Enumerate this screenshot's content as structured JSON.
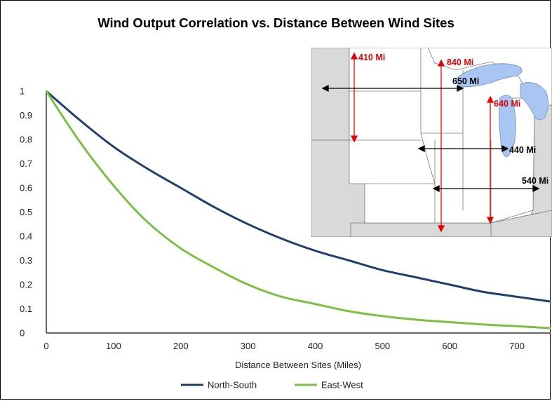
{
  "chart_data": {
    "type": "line",
    "title": "Wind Output Correlation vs. Distance Between Wind Sites",
    "xlabel": "Distance Between Sites (Miles)",
    "ylabel": "",
    "xlim": [
      0,
      750
    ],
    "ylim": [
      0,
      1
    ],
    "x_ticks": [
      "0",
      "100",
      "200",
      "300",
      "400",
      "500",
      "600",
      "700"
    ],
    "y_ticks": [
      "0",
      "0.1",
      "0.2",
      "0.3",
      "0.4",
      "0.5",
      "0.6",
      "0.7",
      "0.8",
      "0.9",
      "1"
    ],
    "grid": false,
    "legend_position": "bottom",
    "series": [
      {
        "name": "North-South",
        "color": "#1f3f6e",
        "x": [
          0,
          50,
          100,
          150,
          200,
          250,
          300,
          350,
          400,
          450,
          500,
          550,
          600,
          650,
          700,
          750
        ],
        "values": [
          1.0,
          0.88,
          0.77,
          0.68,
          0.6,
          0.52,
          0.45,
          0.39,
          0.34,
          0.3,
          0.26,
          0.23,
          0.2,
          0.17,
          0.15,
          0.13
        ]
      },
      {
        "name": "East-West",
        "color": "#7ac143",
        "x": [
          0,
          50,
          100,
          150,
          200,
          250,
          300,
          350,
          400,
          450,
          500,
          550,
          600,
          650,
          700,
          750
        ],
        "values": [
          1.0,
          0.79,
          0.61,
          0.46,
          0.35,
          0.27,
          0.2,
          0.15,
          0.12,
          0.09,
          0.07,
          0.055,
          0.045,
          0.035,
          0.028,
          0.02
        ]
      }
    ],
    "inset_map": {
      "description_icon": "midwest-map-icon",
      "north_south_color": "#e60000",
      "east_west_color": "#000000",
      "water_color": "#a9c6f2",
      "land_color": "#d9d9d9",
      "labels": {
        "ns_410": "410 Mi",
        "ns_840": "840 Mi",
        "ns_640": "640 Mi",
        "ew_650": "650 Mi",
        "ew_440": "440 Mi",
        "ew_540": "540 Mi"
      }
    }
  }
}
